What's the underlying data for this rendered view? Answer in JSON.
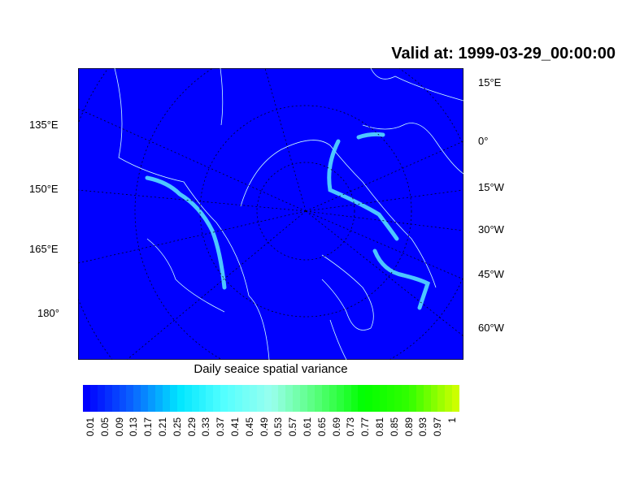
{
  "title": "Valid at: 1999-03-29_00:00:00",
  "left_lon_labels": [
    "135°E",
    "150°E",
    "165°E",
    "180°"
  ],
  "right_lon_labels": [
    "15°E",
    "0°",
    "15°W",
    "30°W",
    "45°W",
    "60°W"
  ],
  "colorbar": {
    "title": "Daily seaice spatial variance",
    "labels": [
      "0.01",
      "0.05",
      "0.09",
      "0.13",
      "0.17",
      "0.21",
      "0.25",
      "0.29",
      "0.33",
      "0.37",
      "0.41",
      "0.45",
      "0.49",
      "0.53",
      "0.57",
      "0.61",
      "0.65",
      "0.69",
      "0.73",
      "0.77",
      "0.81",
      "0.85",
      "0.89",
      "0.93",
      "0.97",
      "1"
    ],
    "color_stops": [
      "#0000ff",
      "#0a64ff",
      "#00e6ff",
      "#55ffff",
      "#99ffee",
      "#55ff77",
      "#00ff00",
      "#33ff00",
      "#ccff00"
    ]
  },
  "colors": {
    "background_field": "#0000ff",
    "coastline": "#ccffff",
    "ice_edge": "#55ddff"
  }
}
